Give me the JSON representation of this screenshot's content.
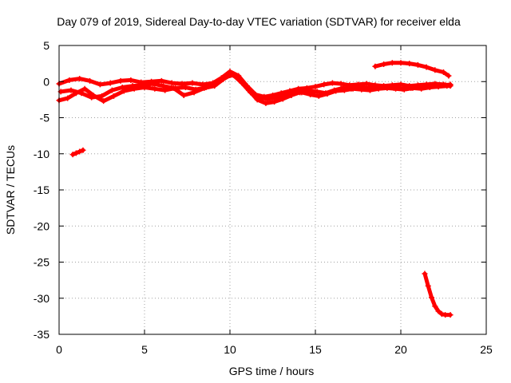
{
  "chart_data": {
    "type": "scatter",
    "title": "Day 079 of 2019, Sidereal Day-to-day VTEC variation (SDTVAR) for receiver elda",
    "xlabel": "GPS time / hours",
    "ylabel": "SDTVAR / TECUs",
    "xlim": [
      0,
      25
    ],
    "ylim": [
      -35,
      5
    ],
    "xticks": [
      0,
      5,
      10,
      15,
      20,
      25
    ],
    "yticks": [
      5,
      0,
      -5,
      -10,
      -15,
      -20,
      -25,
      -30,
      -35
    ],
    "grid": true,
    "marker": "plus",
    "color": "#ff0000",
    "series": [
      {
        "name": "trace-1",
        "x": [
          0.0,
          0.6,
          1.2,
          1.8,
          2.4,
          3.0,
          3.6,
          4.2,
          4.8,
          5.4,
          6.0,
          6.6,
          7.2,
          7.8,
          8.4,
          9.0,
          9.5,
          10.0,
          10.5,
          11.0,
          11.5,
          12.0,
          12.5,
          13.0,
          13.5,
          14.0,
          14.5,
          15.0,
          15.5,
          16.0,
          16.5,
          17.0,
          17.5,
          18.0,
          18.5,
          19.0,
          19.5,
          20.0,
          20.5,
          21.0,
          21.5,
          22.0,
          22.5,
          22.9
        ],
        "y": [
          -0.3,
          0.2,
          0.4,
          0.1,
          -0.4,
          -0.2,
          0.1,
          0.2,
          -0.1,
          0.0,
          0.1,
          -0.2,
          -0.3,
          -0.2,
          -0.4,
          -0.2,
          0.5,
          1.4,
          0.8,
          -0.6,
          -1.8,
          -2.1,
          -1.9,
          -1.6,
          -1.3,
          -1.0,
          -0.9,
          -0.7,
          -0.4,
          -0.2,
          -0.3,
          -0.5,
          -0.4,
          -0.3,
          -0.5,
          -0.6,
          -0.5,
          -0.4,
          -0.6,
          -0.5,
          -0.4,
          -0.3,
          -0.4,
          -0.5
        ]
      },
      {
        "name": "trace-2",
        "x": [
          0.1,
          0.7,
          1.3,
          1.9,
          2.5,
          3.1,
          3.7,
          4.3,
          4.9,
          5.5,
          6.1,
          6.7,
          7.3,
          7.9,
          8.5,
          9.1,
          9.6,
          10.1,
          10.6,
          11.1,
          11.6,
          12.1,
          12.6,
          13.1,
          13.6,
          14.1,
          14.6,
          15.1,
          15.6,
          16.1,
          16.6,
          17.1,
          17.6,
          18.1,
          18.6,
          19.1,
          19.6,
          20.1,
          20.6,
          21.1,
          21.6,
          22.1,
          22.6,
          22.9
        ],
        "y": [
          -1.4,
          -1.2,
          -1.6,
          -2.2,
          -2.0,
          -1.2,
          -0.8,
          -0.6,
          -0.5,
          -0.3,
          -0.6,
          -0.9,
          -1.9,
          -1.5,
          -0.9,
          -0.6,
          0.3,
          1.0,
          0.2,
          -1.2,
          -2.5,
          -3.0,
          -2.8,
          -2.4,
          -1.9,
          -1.5,
          -1.3,
          -1.4,
          -1.6,
          -1.2,
          -0.9,
          -1.0,
          -0.8,
          -0.9,
          -0.7,
          -0.8,
          -0.9,
          -1.0,
          -0.9,
          -0.8,
          -0.7,
          -0.6,
          -0.5,
          -0.4
        ]
      },
      {
        "name": "trace-3",
        "x": [
          0.0,
          0.5,
          1.0,
          1.5,
          2.0,
          2.6,
          3.2,
          3.8,
          4.4,
          5.0,
          5.6,
          6.2,
          6.8,
          7.4,
          8.0,
          8.6,
          9.2,
          9.7,
          10.2,
          10.7,
          11.2,
          11.7,
          12.2,
          12.7,
          13.2,
          13.7,
          14.2,
          14.7,
          15.2,
          15.7,
          16.2,
          16.7,
          17.2,
          17.7,
          18.2,
          18.7,
          19.2,
          19.7,
          20.2,
          20.7,
          21.2,
          21.7,
          22.2,
          22.7,
          22.9
        ],
        "y": [
          -2.6,
          -2.3,
          -1.6,
          -1.0,
          -1.9,
          -2.7,
          -2.0,
          -1.3,
          -1.0,
          -0.8,
          -1.0,
          -1.2,
          -0.9,
          -0.8,
          -1.1,
          -0.8,
          -0.1,
          0.6,
          0.9,
          -0.2,
          -1.5,
          -2.2,
          -2.4,
          -2.2,
          -1.8,
          -1.6,
          -1.5,
          -1.8,
          -2.0,
          -1.7,
          -1.3,
          -1.2,
          -1.0,
          -1.1,
          -1.2,
          -1.0,
          -0.9,
          -1.0,
          -1.1,
          -0.9,
          -1.0,
          -0.8,
          -0.7,
          -0.6,
          -0.6
        ]
      },
      {
        "name": "trace-4",
        "x": [
          18.5,
          19.0,
          19.5,
          20.0,
          20.5,
          21.0,
          21.5,
          22.0,
          22.5,
          22.8
        ],
        "y": [
          2.1,
          2.4,
          2.6,
          2.6,
          2.5,
          2.3,
          2.0,
          1.6,
          1.3,
          0.8
        ]
      },
      {
        "name": "trace-5",
        "x": [
          0.8,
          1.0,
          1.2,
          1.4
        ],
        "y": [
          -10.1,
          -9.9,
          -9.7,
          -9.5
        ]
      },
      {
        "name": "trace-6",
        "x": [
          21.4,
          21.6,
          21.8,
          22.0,
          22.2,
          22.4,
          22.6,
          22.9
        ],
        "y": [
          -26.6,
          -28.3,
          -29.9,
          -31.1,
          -31.8,
          -32.2,
          -32.3,
          -32.3
        ]
      }
    ]
  }
}
